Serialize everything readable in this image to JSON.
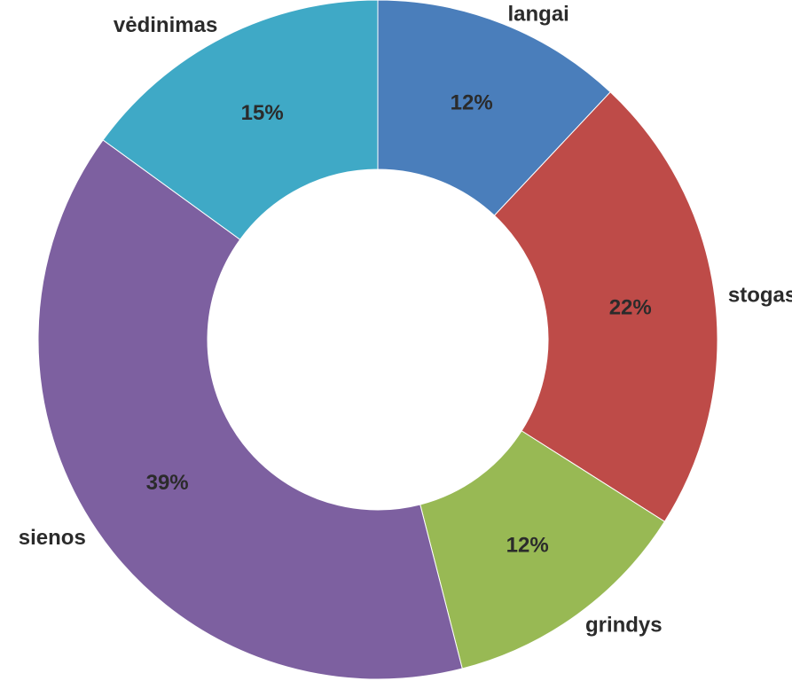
{
  "chart_data": {
    "type": "pie",
    "style": "donut",
    "title": "",
    "start_angle_deg": 0,
    "direction": "clockwise",
    "slices": [
      {
        "name": "langai",
        "value": 12,
        "label": "12%",
        "color": "#4a7ebb"
      },
      {
        "name": "stogas",
        "value": 22,
        "label": "22%",
        "color": "#be4b48"
      },
      {
        "name": "grindys",
        "value": 12,
        "label": "12%",
        "color": "#98b954"
      },
      {
        "name": "sienos",
        "value": 39,
        "label": "39%",
        "color": "#7d60a0"
      },
      {
        "name": "vėdinimas",
        "value": 15,
        "label": "15%",
        "color": "#3fa9c6"
      }
    ]
  }
}
